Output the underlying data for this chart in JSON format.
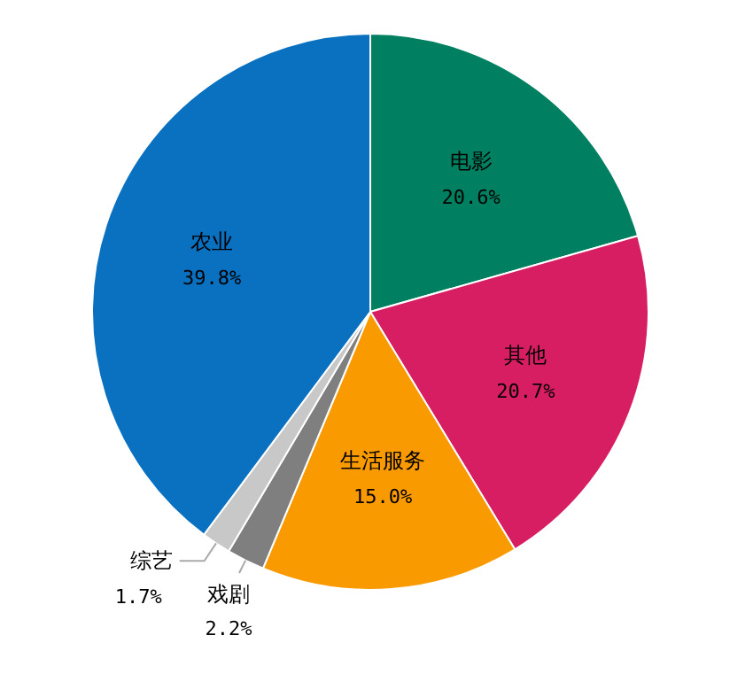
{
  "chart_data": {
    "type": "pie",
    "categories": [
      "电影",
      "其他",
      "生活服务",
      "戏剧",
      "综艺",
      "农业"
    ],
    "values": [
      20.6,
      20.7,
      15.0,
      2.2,
      1.7,
      39.8
    ],
    "value_labels": [
      "20.6%",
      "20.7%",
      "15.0%",
      "2.2%",
      "1.7%",
      "39.8%"
    ],
    "colors": [
      "#008060",
      "#d81e62",
      "#f89a00",
      "#7f7f7f",
      "#c8c8c8",
      "#0a70c0"
    ]
  }
}
